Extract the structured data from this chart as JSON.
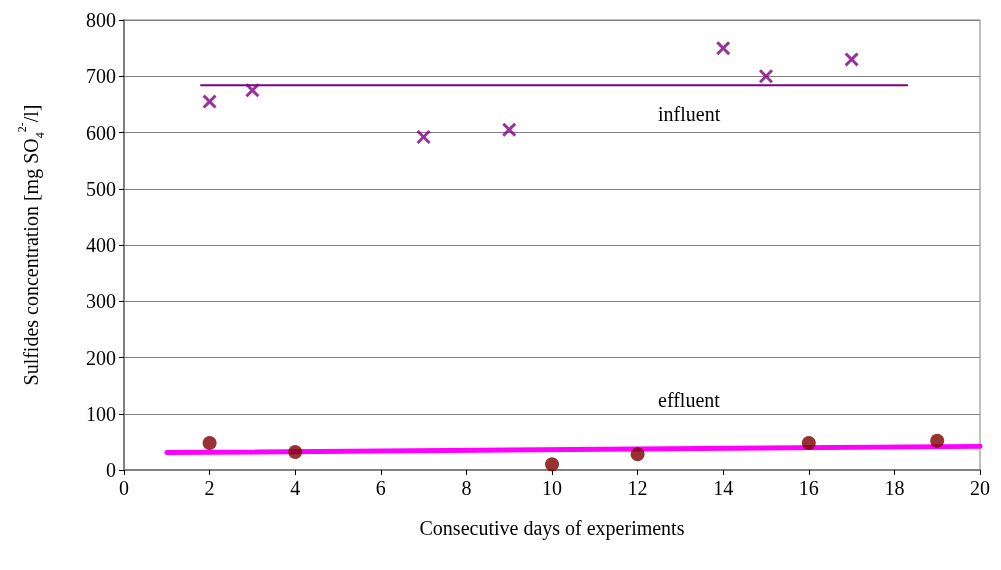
{
  "chart_data": {
    "type": "scatter",
    "xlabel": "Consecutive days of experiments",
    "ylabel": "Sulfides concentration [mg SO$_{4}$$^{2-}$/l]",
    "xlim": [
      0,
      20
    ],
    "xticks": [
      0,
      2,
      4,
      6,
      8,
      10,
      12,
      14,
      16,
      18,
      20
    ],
    "ylim": [
      0,
      800
    ],
    "yticks": [
      0,
      100,
      200,
      300,
      400,
      500,
      600,
      700,
      800
    ],
    "grid": "y",
    "series": [
      {
        "marker": "cross",
        "color": "#800080",
        "x": [
          2,
          3,
          7,
          9,
          14,
          15,
          17
        ],
        "values": [
          655,
          675,
          592,
          605,
          750,
          700,
          730
        ]
      },
      {
        "type": "line",
        "marker": "none",
        "color": "#800080",
        "x": [
          1.8,
          18.3
        ],
        "values": [
          684,
          684
        ]
      },
      {
        "marker": "circle",
        "color": "#800000",
        "x": [
          2,
          4,
          10,
          12,
          16,
          19
        ],
        "values": [
          48,
          32,
          10,
          28,
          48,
          52
        ]
      },
      {
        "type": "line",
        "marker": "none",
        "color": "#ff00ff",
        "x": [
          1,
          20
        ],
        "values": [
          31,
          42
        ]
      }
    ],
    "annotations": [
      "influent",
      "effluent"
    ]
  }
}
